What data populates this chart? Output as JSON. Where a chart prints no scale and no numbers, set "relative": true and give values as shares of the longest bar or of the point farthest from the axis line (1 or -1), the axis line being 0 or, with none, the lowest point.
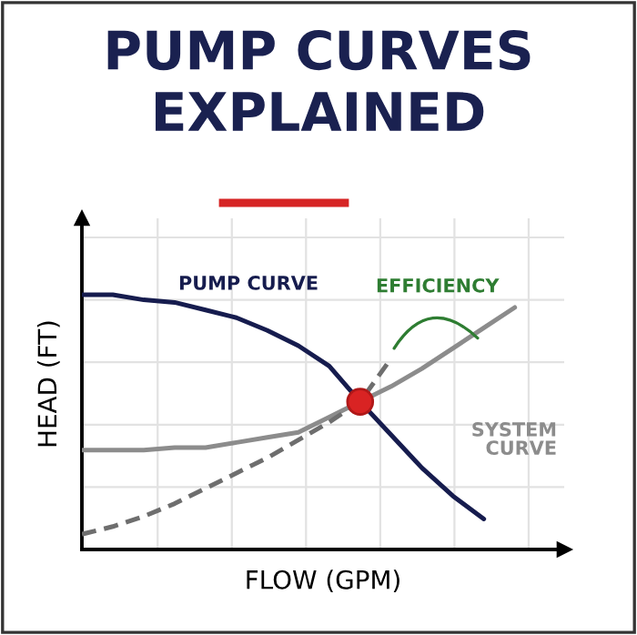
{
  "chart_data": {
    "type": "line",
    "title": "PUMP CURVES\nEXPLAINED",
    "xlabel": "FLOW (GPM)",
    "ylabel": "HEAD (FT)",
    "relative": true,
    "grid": true,
    "legend": false,
    "categories": [
      null,
      null,
      null,
      null,
      null,
      null,
      null,
      null,
      null,
      null,
      null,
      null,
      null,
      null,
      null
    ],
    "series": [
      {
        "name": "PUMP CURVE",
        "color": "#161c4e",
        "line_style": "solid",
        "values": [
          1.0,
          1.0,
          0.98,
          0.97,
          0.94,
          0.91,
          0.86,
          0.8,
          0.72,
          0.58,
          0.45,
          0.32,
          0.21,
          0.12,
          null
        ]
      },
      {
        "name": "SYSTEM CURVE",
        "color": "#8c8c8c",
        "line_style": "solid",
        "values": [
          0.39,
          0.39,
          0.39,
          0.4,
          0.4,
          0.42,
          0.44,
          0.46,
          0.52,
          0.58,
          0.64,
          0.71,
          0.79,
          0.87,
          0.95
        ]
      },
      {
        "color": "#6e6e6e",
        "line_style": "dashed",
        "values": [
          0.06,
          0.09,
          0.13,
          0.18,
          0.24,
          0.3,
          0.36,
          0.43,
          0.5,
          0.58,
          0.75,
          null,
          null,
          null,
          null
        ]
      },
      {
        "color": "#d92323",
        "marker": "circle",
        "values": [
          null,
          null,
          null,
          null,
          null,
          null,
          null,
          null,
          null,
          0.58,
          null,
          null,
          null,
          null,
          null
        ]
      }
    ],
    "annotations": [
      "EFFICIENCY"
    ]
  }
}
